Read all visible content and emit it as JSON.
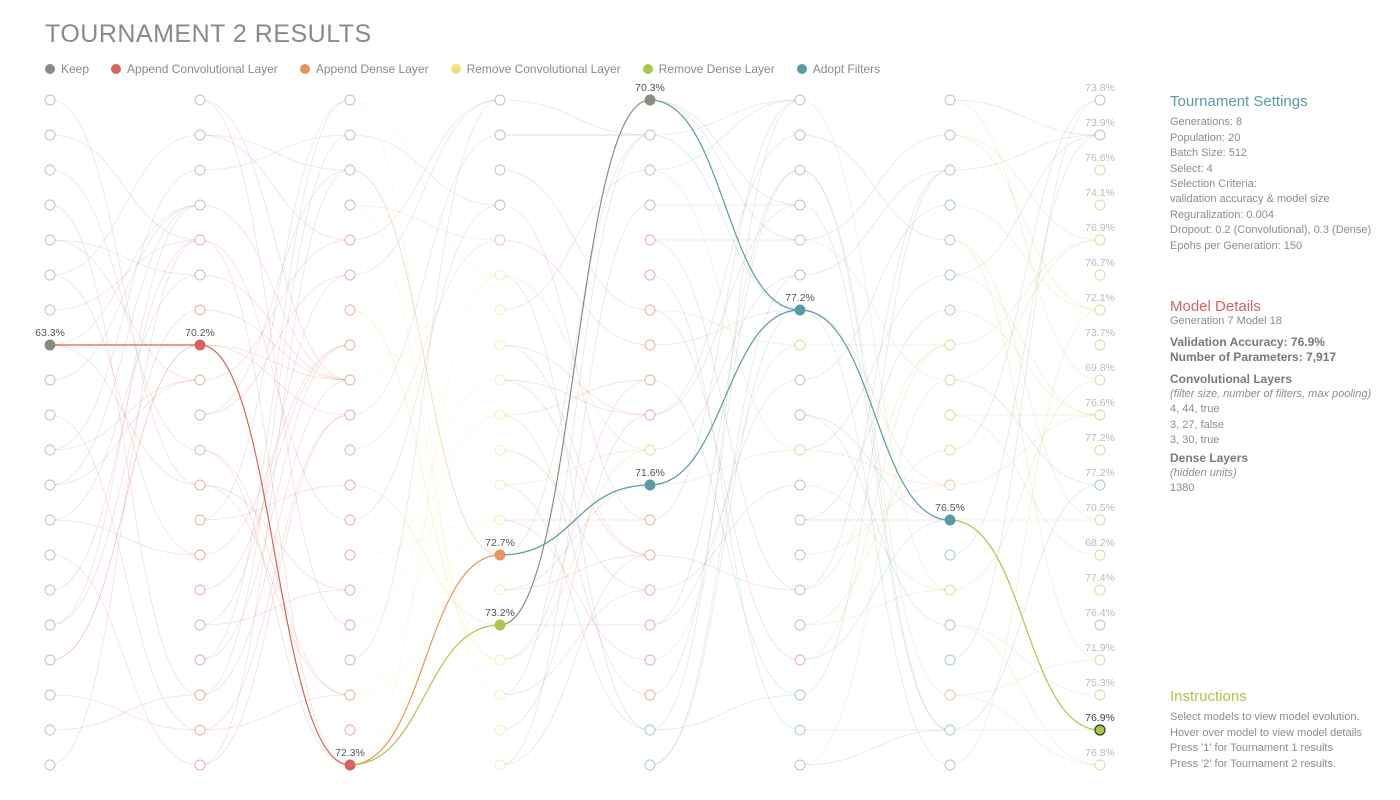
{
  "title": "TOURNAMENT 2 RESULTS",
  "legend": [
    {
      "label": "Keep",
      "color": "#8b8b84"
    },
    {
      "label": "Append Convolutional Layer",
      "color": "#d9625c"
    },
    {
      "label": "Append Dense Layer",
      "color": "#e8955a"
    },
    {
      "label": "Remove Convolutional Layer",
      "color": "#ece27c"
    },
    {
      "label": "Remove Dense Layer",
      "color": "#a8c947"
    },
    {
      "label": "Adopt Filters",
      "color": "#5b9aa5"
    }
  ],
  "generations": [
    {
      "gen": 0,
      "node_ops": [
        "k",
        "k",
        "k",
        "k",
        "k",
        "k",
        "k",
        "k",
        "k",
        "k",
        "k",
        "k",
        "k",
        "k",
        "k",
        "k",
        "k",
        "k",
        "k",
        "k"
      ]
    },
    {
      "gen": 1,
      "node_ops": [
        "k",
        "k",
        "k",
        "k",
        "c",
        "k",
        "c",
        "c",
        "c",
        "k",
        "k",
        "c",
        "c",
        "c",
        "c",
        "k",
        "c",
        "c",
        "c",
        "c"
      ]
    },
    {
      "gen": 2,
      "node_ops": [
        "k",
        "k",
        "k",
        "k",
        "c",
        "c",
        "c",
        "c",
        "c",
        "c",
        "k",
        "c",
        "c",
        "c",
        "c",
        "c",
        "f",
        "c",
        "c",
        "c"
      ]
    },
    {
      "gen": 3,
      "node_ops": [
        "k",
        "k",
        "k",
        "k",
        "d",
        "r",
        "r",
        "r",
        "r",
        "r",
        "r",
        "r",
        "r",
        "d",
        "r",
        "g",
        "r",
        "r",
        "r",
        "r"
      ]
    },
    {
      "gen": 4,
      "node_ops": [
        "k",
        "k",
        "k",
        "k",
        "c",
        "c",
        "c",
        "c",
        "c",
        "c",
        "g",
        "f",
        "c",
        "c",
        "c",
        "c",
        "c",
        "c",
        "f",
        "f"
      ]
    },
    {
      "gen": 5,
      "node_ops": [
        "k",
        "k",
        "k",
        "k",
        "k",
        "k",
        "f",
        "g",
        "f",
        "f",
        "g",
        "k",
        "k",
        "k",
        "k",
        "f",
        "c",
        "f",
        "f",
        "k"
      ]
    },
    {
      "gen": 6,
      "node_ops": [
        "k",
        "k",
        "k",
        "f",
        "k",
        "f",
        "k",
        "g",
        "g",
        "g",
        "g",
        "d",
        "f",
        "f",
        "g",
        "f",
        "f",
        "d",
        "f",
        "k"
      ]
    },
    {
      "gen": 7,
      "node_ops": [
        "k",
        "k",
        "g",
        "g",
        "g",
        "g",
        "g",
        "g",
        "g",
        "g",
        "g",
        "f",
        "g",
        "g",
        "g",
        "f",
        "g",
        "g",
        "g",
        "g"
      ]
    }
  ],
  "labels": [
    {
      "gen": 0,
      "idx": 7,
      "text": "63.3%"
    },
    {
      "gen": 1,
      "idx": 7,
      "text": "70.2%"
    },
    {
      "gen": 2,
      "idx": 19,
      "text": "72.3%"
    },
    {
      "gen": 3,
      "idx": 13,
      "text": "72.7%"
    },
    {
      "gen": 3,
      "idx": 15,
      "text": "73.2%"
    },
    {
      "gen": 4,
      "idx": 0,
      "text": "70.3%"
    },
    {
      "gen": 4,
      "idx": 11,
      "text": "71.6%"
    },
    {
      "gen": 5,
      "idx": 6,
      "text": "77.2%"
    },
    {
      "gen": 6,
      "idx": 12,
      "text": "76.5%"
    }
  ],
  "final_accuracies": [
    "73.8%",
    "73.9%",
    "76.6%",
    "74.1%",
    "76.9%",
    "76.7%",
    "72.1%",
    "73.7%",
    "69.8%",
    "76.6%",
    "77.2%",
    "77.2%",
    "70.5%",
    "68.2%",
    "77.4%",
    "76.4%",
    "71.9%",
    "75.3%",
    "76.9%",
    "76.8%"
  ],
  "highlight": {
    "path_a": [
      [
        0,
        7
      ],
      [
        1,
        7
      ],
      [
        2,
        19
      ],
      [
        3,
        13
      ],
      [
        4,
        11
      ],
      [
        5,
        6
      ],
      [
        6,
        12
      ],
      [
        7,
        18
      ]
    ],
    "path_b": [
      [
        2,
        19
      ],
      [
        3,
        15
      ],
      [
        4,
        0
      ],
      [
        5,
        6
      ]
    ],
    "selected_final": 18
  },
  "op_colors": {
    "k": "#8b8b84",
    "c": "#d9625c",
    "d": "#e8955a",
    "r": "#ece27c",
    "g": "#a8c947",
    "f": "#5b9aa5"
  },
  "settings": {
    "heading": "Tournament Settings",
    "lines": [
      "Generations: 8",
      "Population: 20",
      "Batch Size: 512",
      "Select: 4",
      "Selection Criteria:",
      "validation accuracy & model size",
      "Reguralization: 0.004",
      "Dropout: 0.2 (Convolutional), 0.3 (Dense)",
      " Epohs per Generation: 150"
    ]
  },
  "details": {
    "heading": "Model Details",
    "subtitle": "Generation 7  Model 18",
    "accuracy": "Validation Accuracy: 76.9%",
    "params": "Number of  Parameters: 7,917",
    "conv_heading": "Convolutional Layers",
    "conv_note": "(filter size, number of filters, max pooling)",
    "conv_lines": [
      "4, 44, true",
      "3, 27, false",
      "3, 30, true"
    ],
    "dense_heading": "Dense Layers",
    "dense_note": "(hidden units)",
    "dense_lines": [
      "1380"
    ]
  },
  "instructions": {
    "heading": "Instructions",
    "lines": [
      "Select models to view model evolution.",
      "Hover over model to view model details",
      "Press '1' for Tournament 1 results",
      "Press '2' for Tournament 2 results."
    ]
  }
}
